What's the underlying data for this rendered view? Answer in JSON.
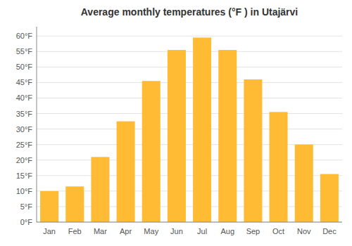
{
  "chart_data": {
    "type": "bar",
    "title": "Average monthly temperatures (°F ) in Utajärvi",
    "categories": [
      "Jan",
      "Feb",
      "Mar",
      "Apr",
      "May",
      "Jun",
      "Jul",
      "Aug",
      "Sep",
      "Oct",
      "Nov",
      "Dec"
    ],
    "values": [
      10,
      11.5,
      21,
      32.5,
      45.5,
      55.5,
      59.5,
      55.5,
      46,
      35.5,
      25,
      15.5
    ],
    "color": "#FFBB33",
    "ylim": [
      0,
      63
    ],
    "yticks": [
      {
        "value": 0,
        "label": "0°F"
      },
      {
        "value": 5,
        "label": "5°F"
      },
      {
        "value": 10,
        "label": "10°F"
      },
      {
        "value": 15,
        "label": "15°F"
      },
      {
        "value": 20,
        "label": "20°F"
      },
      {
        "value": 25,
        "label": "25°F"
      },
      {
        "value": 30,
        "label": "30°F"
      },
      {
        "value": 35,
        "label": "35°F"
      },
      {
        "value": 40,
        "label": "40°F"
      },
      {
        "value": 45,
        "label": "45°F"
      },
      {
        "value": 50,
        "label": "50°F"
      },
      {
        "value": 55,
        "label": "55°F"
      },
      {
        "value": 60,
        "label": "60°F"
      }
    ],
    "grid": true
  }
}
